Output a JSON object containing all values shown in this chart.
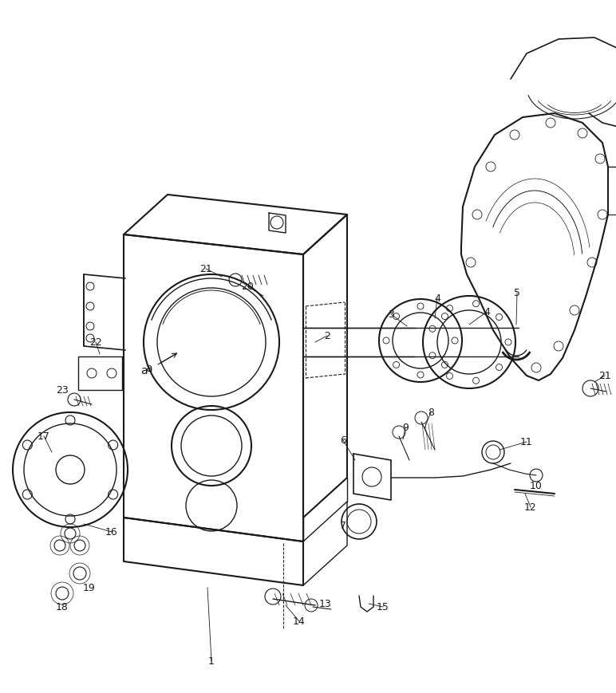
{
  "bg_color": "#ffffff",
  "line_color": "#1a1a1a",
  "fig_width": 7.72,
  "fig_height": 8.7,
  "dpi": 100
}
